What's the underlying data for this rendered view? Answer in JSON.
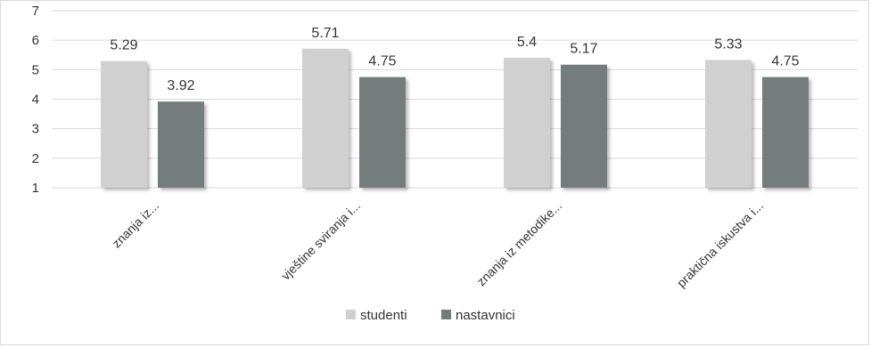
{
  "chart_data": {
    "type": "bar",
    "categories": [
      "znanja iz...",
      "vještine sviranja i...",
      "znanja iz metodike...",
      "praktična iskustva i..."
    ],
    "series": [
      {
        "name": "studenti",
        "values": [
          5.29,
          5.71,
          5.4,
          5.33
        ],
        "color": "#d0d0d0"
      },
      {
        "name": "nastavnici",
        "values": [
          3.92,
          4.75,
          5.17,
          4.75
        ],
        "color": "#757b7b"
      }
    ],
    "value_labels": [
      [
        "5.29",
        "5.71",
        "5.4",
        "5.33"
      ],
      [
        "3.92",
        "4.75",
        "5.17",
        "4.75"
      ]
    ],
    "y_ticks": [
      "1",
      "2",
      "3",
      "4",
      "5",
      "6",
      "7"
    ],
    "ylim": [
      1,
      7
    ],
    "grid": true,
    "legend_position": "bottom"
  }
}
